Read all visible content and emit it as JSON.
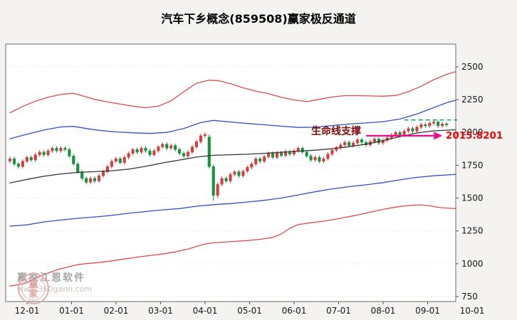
{
  "window": {
    "title": "汽车下乡概念(859508)赢家极反通道"
  },
  "watermark": {
    "brand": "赢家江恩软件",
    "url": "www.360gann.com",
    "seal_char1": "赢",
    "seal_char2": "家"
  },
  "chart_data": {
    "type": "candlestick",
    "title": "汽车下乡概念(859508)赢家极反通道",
    "xlabel": "",
    "ylabel": "",
    "grid": "faint-dotted-horizontal",
    "legend_position": "none",
    "ylim": [
      712,
      2673
    ],
    "y_ticks": [
      750,
      1000,
      1250,
      1500,
      1750,
      2000,
      2250,
      2500
    ],
    "x_tick_labels": [
      "12-01",
      "01-01",
      "02-01",
      "03-01",
      "04-01",
      "05-01",
      "06-01",
      "07-01",
      "08-01",
      "09-01",
      "10-01"
    ],
    "colors": {
      "up": "#d23f3f",
      "down": "#14923f",
      "channel_red": "#e04b4b",
      "channel_blue": "#3050c8",
      "lifeline_black": "#333333",
      "projection_green": "#00a14b",
      "arrow_magenta": "#ee0a8c",
      "plot_bg": "#ffffff",
      "page_bg": "#f4f3f1"
    },
    "candles": {
      "open": [
        1780,
        1800,
        1760,
        1740,
        1780,
        1810,
        1790,
        1830,
        1850,
        1830,
        1860,
        1880,
        1860,
        1880,
        1870,
        1820,
        1760,
        1700,
        1650,
        1620,
        1650,
        1630,
        1670,
        1700,
        1740,
        1780,
        1800,
        1770,
        1810,
        1840,
        1870,
        1850,
        1880,
        1860,
        1830,
        1860,
        1890,
        1910,
        1880,
        1900,
        1870,
        1840,
        1820,
        1850,
        1890,
        1930,
        1975,
        1965,
        1740,
        1520,
        1605,
        1650,
        1630,
        1680,
        1700,
        1670,
        1705,
        1735,
        1760,
        1800,
        1780,
        1815,
        1840,
        1810,
        1845,
        1825,
        1855,
        1835,
        1860,
        1880,
        1850,
        1820,
        1790,
        1810,
        1780,
        1800,
        1835,
        1865,
        1885,
        1905,
        1925,
        1900,
        1920,
        1945,
        1925,
        1905,
        1930,
        1950,
        1920,
        1940,
        1960,
        1980,
        2000,
        1980,
        2010,
        2030,
        2010,
        2040,
        2060,
        2050,
        2070,
        2080,
        2050,
        2065
      ],
      "close": [
        1800,
        1760,
        1740,
        1780,
        1810,
        1790,
        1830,
        1850,
        1830,
        1860,
        1880,
        1860,
        1880,
        1870,
        1820,
        1760,
        1700,
        1650,
        1620,
        1650,
        1630,
        1670,
        1700,
        1740,
        1780,
        1800,
        1770,
        1810,
        1840,
        1870,
        1850,
        1880,
        1860,
        1830,
        1860,
        1890,
        1910,
        1880,
        1900,
        1870,
        1840,
        1820,
        1850,
        1890,
        1930,
        1975,
        1985,
        1740,
        1520,
        1605,
        1650,
        1630,
        1680,
        1700,
        1670,
        1705,
        1735,
        1760,
        1800,
        1780,
        1815,
        1840,
        1810,
        1845,
        1825,
        1855,
        1835,
        1860,
        1880,
        1850,
        1820,
        1790,
        1810,
        1780,
        1800,
        1835,
        1865,
        1885,
        1905,
        1925,
        1900,
        1920,
        1945,
        1925,
        1905,
        1930,
        1950,
        1920,
        1940,
        1960,
        1980,
        2000,
        1980,
        2010,
        2030,
        2010,
        2040,
        2060,
        2050,
        2070,
        2080,
        2050,
        2065,
        2058
      ],
      "low": [
        1765,
        1745,
        1725,
        1725,
        1765,
        1775,
        1775,
        1815,
        1815,
        1815,
        1845,
        1845,
        1845,
        1855,
        1805,
        1745,
        1685,
        1635,
        1605,
        1605,
        1615,
        1615,
        1655,
        1685,
        1725,
        1765,
        1755,
        1755,
        1795,
        1825,
        1835,
        1835,
        1845,
        1815,
        1815,
        1845,
        1875,
        1865,
        1865,
        1855,
        1825,
        1805,
        1805,
        1835,
        1875,
        1915,
        1960,
        1725,
        1480,
        1500,
        1590,
        1615,
        1615,
        1665,
        1655,
        1655,
        1690,
        1720,
        1745,
        1765,
        1765,
        1800,
        1795,
        1795,
        1810,
        1810,
        1820,
        1820,
        1845,
        1835,
        1805,
        1775,
        1775,
        1765,
        1765,
        1785,
        1820,
        1850,
        1870,
        1890,
        1885,
        1885,
        1905,
        1910,
        1890,
        1890,
        1915,
        1905,
        1905,
        1925,
        1945,
        1965,
        1965,
        1965,
        1995,
        1995,
        1995,
        2025,
        2035,
        2035,
        2055,
        2035,
        2035,
        2043
      ],
      "high": [
        1815,
        1815,
        1775,
        1795,
        1825,
        1825,
        1845,
        1865,
        1865,
        1875,
        1895,
        1895,
        1895,
        1895,
        1885,
        1835,
        1775,
        1715,
        1665,
        1665,
        1665,
        1685,
        1715,
        1755,
        1795,
        1815,
        1815,
        1825,
        1855,
        1885,
        1885,
        1895,
        1895,
        1875,
        1875,
        1905,
        1925,
        1925,
        1915,
        1915,
        1885,
        1855,
        1865,
        1905,
        1945,
        1990,
        2000,
        1985,
        1755,
        1620,
        1665,
        1665,
        1695,
        1715,
        1715,
        1720,
        1750,
        1775,
        1815,
        1815,
        1830,
        1855,
        1855,
        1860,
        1860,
        1870,
        1870,
        1875,
        1895,
        1895,
        1865,
        1835,
        1825,
        1825,
        1815,
        1850,
        1880,
        1900,
        1920,
        1940,
        1940,
        1935,
        1960,
        1960,
        1940,
        1945,
        1965,
        1965,
        1955,
        1975,
        1995,
        2015,
        2015,
        2025,
        2045,
        2045,
        2055,
        2075,
        2075,
        2085,
        2095,
        2095,
        2080,
        2080
      ]
    },
    "lines": [
      {
        "name": "outer-resistance-red",
        "color": "#e04b4b",
        "points": [
          [
            0,
            2150
          ],
          [
            3,
            2198
          ],
          [
            6,
            2238
          ],
          [
            9,
            2268
          ],
          [
            12,
            2290
          ],
          [
            15,
            2298
          ],
          [
            17,
            2280
          ],
          [
            20,
            2252
          ],
          [
            23,
            2232
          ],
          [
            26,
            2216
          ],
          [
            29,
            2200
          ],
          [
            32,
            2188
          ],
          [
            35,
            2200
          ],
          [
            38,
            2240
          ],
          [
            41,
            2310
          ],
          [
            44,
            2375
          ],
          [
            47,
            2398
          ],
          [
            49,
            2395
          ],
          [
            52,
            2372
          ],
          [
            55,
            2340
          ],
          [
            58,
            2315
          ],
          [
            61,
            2295
          ],
          [
            64,
            2268
          ],
          [
            67,
            2248
          ],
          [
            70,
            2235
          ],
          [
            73,
            2252
          ],
          [
            76,
            2270
          ],
          [
            79,
            2280
          ],
          [
            82,
            2280
          ],
          [
            85,
            2278
          ],
          [
            88,
            2276
          ],
          [
            91,
            2282
          ],
          [
            94,
            2310
          ],
          [
            97,
            2352
          ],
          [
            100,
            2402
          ],
          [
            103,
            2442
          ],
          [
            105,
            2462
          ]
        ]
      },
      {
        "name": "inner-resistance-blue",
        "color": "#3050c8",
        "points": [
          [
            0,
            1952
          ],
          [
            4,
            1986
          ],
          [
            8,
            2018
          ],
          [
            12,
            2042
          ],
          [
            15,
            2046
          ],
          [
            18,
            2030
          ],
          [
            21,
            2016
          ],
          [
            25,
            2004
          ],
          [
            29,
            1997
          ],
          [
            33,
            1992
          ],
          [
            37,
            2000
          ],
          [
            41,
            2030
          ],
          [
            45,
            2075
          ],
          [
            48,
            2092
          ],
          [
            52,
            2080
          ],
          [
            56,
            2068
          ],
          [
            60,
            2058
          ],
          [
            64,
            2048
          ],
          [
            68,
            2038
          ],
          [
            72,
            2040
          ],
          [
            76,
            2052
          ],
          [
            80,
            2064
          ],
          [
            84,
            2072
          ],
          [
            88,
            2082
          ],
          [
            92,
            2102
          ],
          [
            96,
            2140
          ],
          [
            100,
            2190
          ],
          [
            103,
            2226
          ],
          [
            105,
            2244
          ]
        ]
      },
      {
        "name": "lifeline-black",
        "color": "#333333",
        "points": [
          [
            0,
            1615
          ],
          [
            4,
            1642
          ],
          [
            8,
            1666
          ],
          [
            12,
            1684
          ],
          [
            16,
            1696
          ],
          [
            20,
            1701
          ],
          [
            24,
            1708
          ],
          [
            28,
            1720
          ],
          [
            32,
            1742
          ],
          [
            36,
            1768
          ],
          [
            40,
            1790
          ],
          [
            44,
            1812
          ],
          [
            48,
            1826
          ],
          [
            52,
            1830
          ],
          [
            56,
            1834
          ],
          [
            60,
            1841
          ],
          [
            64,
            1849
          ],
          [
            68,
            1857
          ],
          [
            72,
            1865
          ],
          [
            76,
            1876
          ],
          [
            80,
            1892
          ],
          [
            84,
            1910
          ],
          [
            88,
            1938
          ],
          [
            92,
            1968
          ],
          [
            96,
            1996
          ],
          [
            100,
            2012
          ],
          [
            105,
            2020
          ]
        ]
      },
      {
        "name": "inner-support-blue",
        "color": "#3050c8",
        "points": [
          [
            0,
            1286
          ],
          [
            4,
            1296
          ],
          [
            8,
            1318
          ],
          [
            12,
            1333
          ],
          [
            16,
            1346
          ],
          [
            20,
            1356
          ],
          [
            24,
            1368
          ],
          [
            28,
            1384
          ],
          [
            32,
            1397
          ],
          [
            36,
            1410
          ],
          [
            40,
            1420
          ],
          [
            44,
            1438
          ],
          [
            48,
            1450
          ],
          [
            52,
            1458
          ],
          [
            56,
            1470
          ],
          [
            60,
            1483
          ],
          [
            64,
            1500
          ],
          [
            68,
            1524
          ],
          [
            72,
            1548
          ],
          [
            76,
            1570
          ],
          [
            80,
            1587
          ],
          [
            84,
            1601
          ],
          [
            88,
            1618
          ],
          [
            92,
            1639
          ],
          [
            96,
            1658
          ],
          [
            100,
            1670
          ],
          [
            105,
            1680
          ]
        ]
      },
      {
        "name": "outer-support-red",
        "color": "#e04b4b",
        "points": [
          [
            0,
            830
          ],
          [
            2,
            840
          ],
          [
            4,
            855
          ],
          [
            6,
            890
          ],
          [
            8,
            916
          ],
          [
            10,
            941
          ],
          [
            12,
            962
          ],
          [
            14,
            978
          ],
          [
            16,
            992
          ],
          [
            18,
            1001
          ],
          [
            21,
            1009
          ],
          [
            24,
            1022
          ],
          [
            27,
            1036
          ],
          [
            30,
            1050
          ],
          [
            33,
            1062
          ],
          [
            36,
            1074
          ],
          [
            39,
            1090
          ],
          [
            42,
            1112
          ],
          [
            45,
            1142
          ],
          [
            47,
            1156
          ],
          [
            50,
            1164
          ],
          [
            53,
            1170
          ],
          [
            56,
            1176
          ],
          [
            59,
            1186
          ],
          [
            62,
            1200
          ],
          [
            64,
            1226
          ],
          [
            66,
            1270
          ],
          [
            68,
            1298
          ],
          [
            71,
            1312
          ],
          [
            74,
            1324
          ],
          [
            77,
            1340
          ],
          [
            80,
            1358
          ],
          [
            83,
            1378
          ],
          [
            86,
            1400
          ],
          [
            89,
            1420
          ],
          [
            92,
            1436
          ],
          [
            95,
            1446
          ],
          [
            97,
            1448
          ],
          [
            99,
            1441
          ],
          [
            101,
            1430
          ],
          [
            103,
            1424
          ],
          [
            105,
            1420
          ]
        ]
      }
    ],
    "projection_line": {
      "value": 2095,
      "from_idx": 93,
      "color": "#00a14b",
      "style": "dashed"
    },
    "annotations": {
      "lifeline_label": "生命线支撑",
      "lifeline_value": "2015.8201",
      "arrow_from_idx": 84,
      "arrow_to_idx": 100,
      "arrow_value": 1975,
      "arrow_color": "#ee0a8c"
    }
  }
}
